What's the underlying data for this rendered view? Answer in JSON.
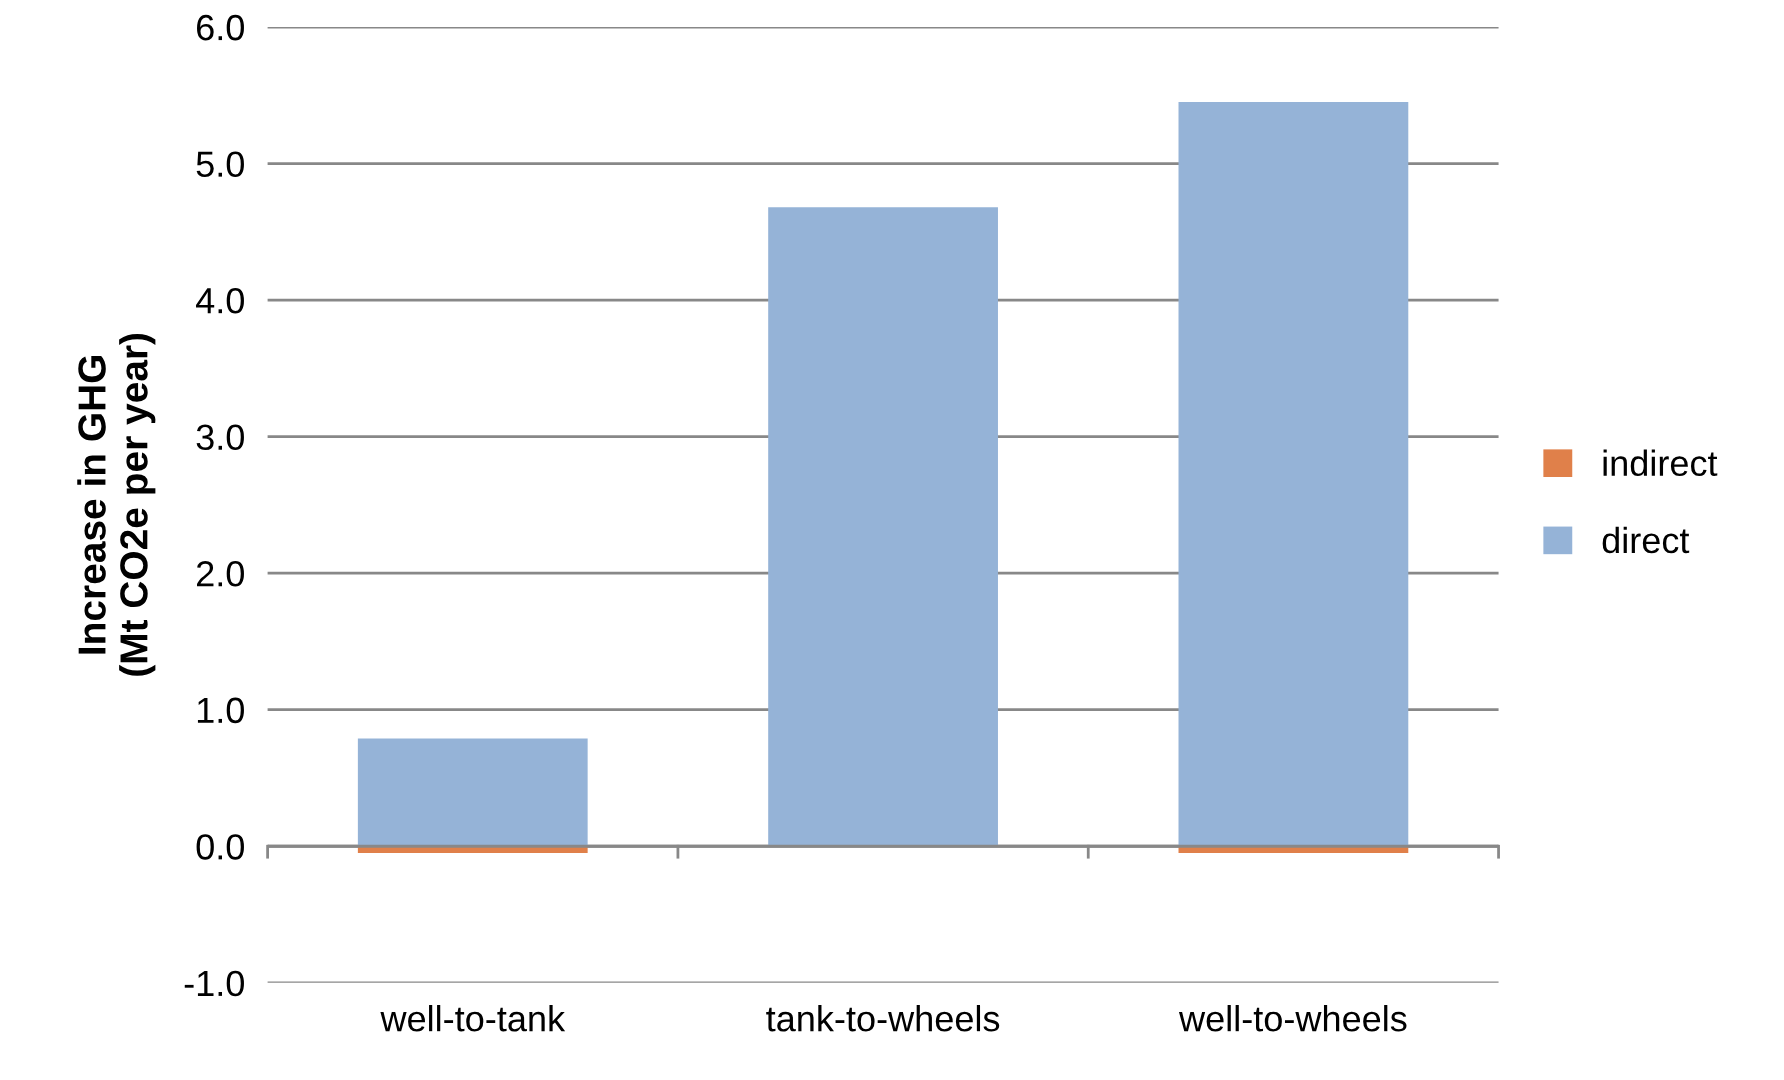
{
  "chart_data": {
    "type": "bar",
    "stacked": true,
    "ylabel": "Increase in GHG\n(Mt CO2e per year)",
    "categories": [
      "well-to-tank",
      "tank-to-wheels",
      "well-to-wheels"
    ],
    "series": [
      {
        "name": "direct",
        "color": "#95b3d7",
        "values": [
          0.79,
          4.68,
          5.45
        ]
      },
      {
        "name": "indirect",
        "color": "#e0804a",
        "values": [
          -0.05,
          0.0,
          -0.05
        ]
      }
    ],
    "ylim": [
      -1.0,
      6.0
    ],
    "yticks": [
      {
        "value": -1.0,
        "label": "-1.0"
      },
      {
        "value": 0.0,
        "label": "0.0"
      },
      {
        "value": 1.0,
        "label": "1.0"
      },
      {
        "value": 2.0,
        "label": "2.0"
      },
      {
        "value": 3.0,
        "label": "3.0"
      },
      {
        "value": 4.0,
        "label": "4.0"
      },
      {
        "value": 5.0,
        "label": "5.0"
      },
      {
        "value": 6.0,
        "label": "6.0"
      }
    ],
    "grid": "y",
    "legend": "right"
  }
}
